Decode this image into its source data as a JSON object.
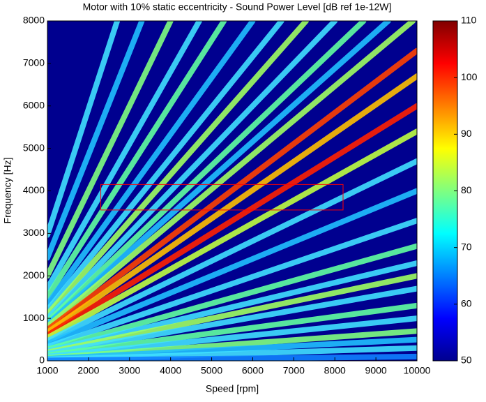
{
  "chart_data": {
    "type": "campbell",
    "title": "Motor with 10% static eccentricity - Sound Power Level [dB ref 1e-12W]",
    "x_label": "Speed [rpm]",
    "y_label": "Frequency [Hz]",
    "xlim": [
      1000,
      10000
    ],
    "ylim": [
      0,
      8000
    ],
    "xticks": [
      1000,
      2000,
      3000,
      4000,
      5000,
      6000,
      7000,
      8000,
      9000,
      10000
    ],
    "yticks": [
      0,
      1000,
      2000,
      3000,
      4000,
      5000,
      6000,
      7000,
      8000
    ],
    "background": "#00008f",
    "series": [
      {
        "color": "#40e0ff",
        "x": [
          1000,
          2700
        ],
        "values": [
          2963,
          8000
        ]
      },
      {
        "color": "#20c0ff",
        "x": [
          1000,
          3300
        ],
        "values": [
          2424,
          8000
        ]
      },
      {
        "color": "#80ff80",
        "x": [
          1000,
          4000
        ],
        "values": [
          2000,
          8000
        ]
      },
      {
        "color": "#40e0ff",
        "x": [
          1000,
          4700
        ],
        "values": [
          1702,
          8000
        ]
      },
      {
        "color": "#60ffa0",
        "x": [
          1000,
          5300
        ],
        "values": [
          1509,
          8000
        ]
      },
      {
        "color": "#20c0ff",
        "x": [
          1000,
          6000
        ],
        "values": [
          1333,
          8000
        ]
      },
      {
        "color": "#40e0ff",
        "x": [
          1000,
          6700
        ],
        "values": [
          1194,
          8000
        ]
      },
      {
        "color": "#a0ff60",
        "x": [
          1000,
          7300
        ],
        "values": [
          1096,
          8000
        ]
      },
      {
        "color": "#40e0ff",
        "x": [
          1000,
          8000
        ],
        "values": [
          1000,
          8000
        ]
      },
      {
        "color": "#60ffa0",
        "x": [
          1000,
          8700
        ],
        "values": [
          920,
          8000
        ]
      },
      {
        "color": "#20c0ff",
        "x": [
          1000,
          9300
        ],
        "values": [
          860,
          8000
        ]
      },
      {
        "color": "#a0ff60",
        "x": [
          1000,
          9900
        ],
        "values": [
          808,
          8000
        ]
      },
      {
        "color": "#ff4000",
        "x": [
          1000,
          10000
        ],
        "values": [
          730,
          7300
        ]
      },
      {
        "color": "#ffbf00",
        "x": [
          1000,
          10000
        ],
        "values": [
          670,
          6700
        ]
      },
      {
        "color": "#ff2000",
        "x": [
          1000,
          10000
        ],
        "values": [
          600,
          6000
        ]
      },
      {
        "color": "#bfff40",
        "x": [
          1000,
          10000
        ],
        "values": [
          540,
          5400
        ]
      },
      {
        "color": "#40e0ff",
        "x": [
          1000,
          10000
        ],
        "values": [
          470,
          4700
        ]
      },
      {
        "color": "#20c0ff",
        "x": [
          1000,
          10000
        ],
        "values": [
          400,
          4000
        ]
      },
      {
        "color": "#40e0ff",
        "x": [
          1000,
          10000
        ],
        "values": [
          330,
          3300
        ]
      },
      {
        "color": "#60ffa0",
        "x": [
          1000,
          10000
        ],
        "values": [
          270,
          2700
        ]
      },
      {
        "color": "#40e0ff",
        "x": [
          1000,
          10000
        ],
        "values": [
          230,
          2300
        ]
      },
      {
        "color": "#a0ff60",
        "x": [
          1000,
          10000
        ],
        "values": [
          200,
          2000
        ]
      },
      {
        "color": "#40e0ff",
        "x": [
          1000,
          10000
        ],
        "values": [
          170,
          1700
        ]
      },
      {
        "color": "#60ffa0",
        "x": [
          1000,
          10000
        ],
        "values": [
          130,
          1300
        ]
      },
      {
        "color": "#40e0ff",
        "x": [
          1000,
          10000
        ],
        "values": [
          100,
          1000
        ]
      },
      {
        "color": "#80ff80",
        "x": [
          1000,
          10000
        ],
        "values": [
          70,
          700
        ]
      },
      {
        "color": "#20c0ff",
        "x": [
          1000,
          10000
        ],
        "values": [
          50,
          500
        ]
      },
      {
        "color": "#40e0ff",
        "x": [
          1000,
          10000
        ],
        "values": [
          30,
          300
        ]
      },
      {
        "color": "#1080ff",
        "x": [
          1000,
          10000
        ],
        "values": [
          10,
          100
        ]
      }
    ],
    "highlight_box": {
      "x": [
        2300,
        8200
      ],
      "y": [
        3550,
        4150
      ],
      "color": "#ff0000"
    },
    "colorbar": {
      "lim": [
        50,
        110
      ],
      "ticks": [
        50,
        60,
        70,
        80,
        90,
        100,
        110
      ]
    }
  }
}
